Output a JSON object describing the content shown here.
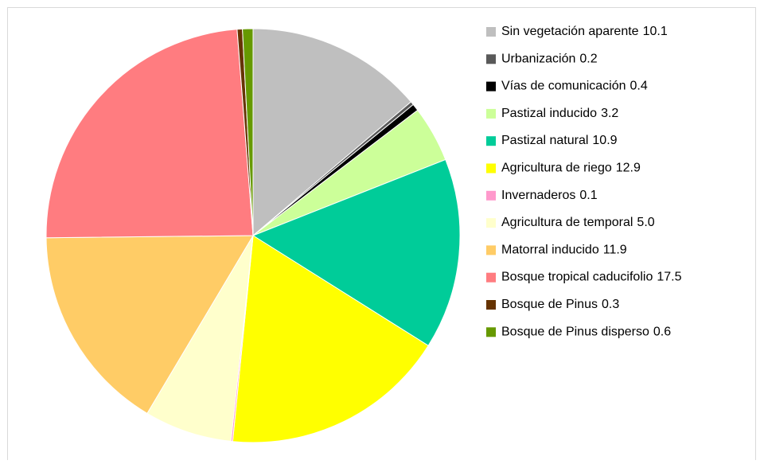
{
  "chart_data": {
    "type": "pie",
    "categories": [
      "Sin vegetación aparente",
      "Urbanización",
      "Vías de comunicación",
      "Pastizal inducido",
      "Pastizal natural",
      "Agricultura de riego",
      "Invernaderos",
      "Agricultura de temporal",
      "Matorral inducido",
      "Bosque tropical caducifolio",
      "Bosque de Pinus",
      "Bosque de Pinus disperso"
    ],
    "values": [
      10.1,
      0.2,
      0.4,
      3.2,
      10.9,
      12.9,
      0.1,
      5.0,
      11.9,
      17.5,
      0.3,
      0.6
    ],
    "value_labels": [
      "10.1",
      "0.2",
      "0.4",
      "3.2",
      "10.9",
      "12.9",
      "0.1",
      "5.0",
      "11.9",
      "17.5",
      "0.3",
      "0.6"
    ],
    "colors": [
      "#bfbfbf",
      "#595959",
      "#000000",
      "#ccff99",
      "#00cc99",
      "#ffff00",
      "#ff99cc",
      "#ffffcc",
      "#ffcc66",
      "#ff7c80",
      "#663300",
      "#669900"
    ],
    "legend": "right"
  }
}
